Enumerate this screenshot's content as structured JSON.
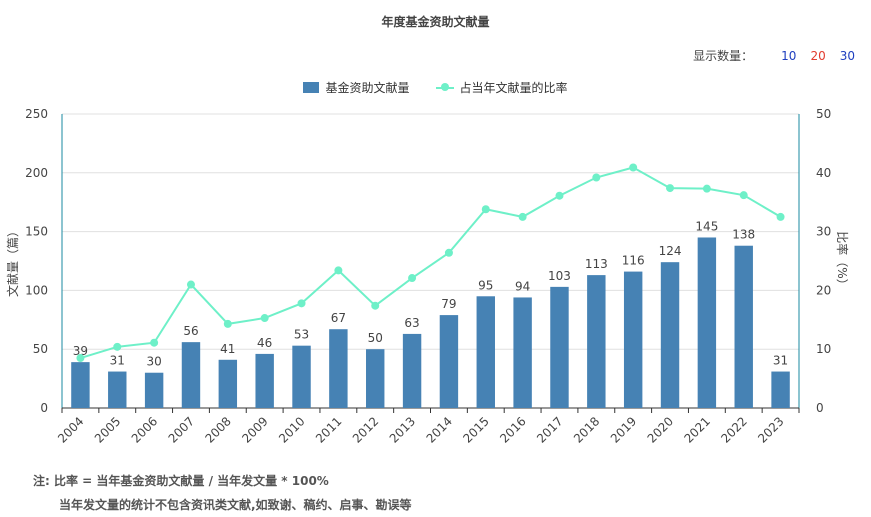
{
  "page_title": "年度基金资助文献量",
  "count_selector": {
    "label": "显示数量：",
    "options": [
      {
        "label": "10",
        "color": "#1f3fbf"
      },
      {
        "label": "20",
        "color": "#e23b2e"
      },
      {
        "label": "30",
        "color": "#1f3fbf"
      }
    ]
  },
  "legend": {
    "bar_label": "基金资助文献量",
    "line_label": "占当年文献量的比率"
  },
  "notes": {
    "line1": "注:  比率 = 当年基金资助文献量 / 当年发文量 * 100%",
    "line2": "当年发文量的统计不包含资讯类文献,如致谢、稿约、启事、勘误等"
  },
  "colors": {
    "bar": "#4682b4",
    "line": "#6ef0c8",
    "axis": "#1a8aa0",
    "grid": "#e0e0e0"
  },
  "chart_data": {
    "type": "bar",
    "title": "年度基金资助文献量",
    "categories": [
      "2004",
      "2005",
      "2006",
      "2007",
      "2008",
      "2009",
      "2010",
      "2011",
      "2012",
      "2013",
      "2014",
      "2015",
      "2016",
      "2017",
      "2018",
      "2019",
      "2020",
      "2021",
      "2022",
      "2023"
    ],
    "series": [
      {
        "name": "基金资助文献量",
        "type": "bar",
        "axis": "left",
        "values": [
          39,
          31,
          30,
          56,
          41,
          46,
          53,
          67,
          50,
          63,
          79,
          95,
          94,
          103,
          113,
          116,
          124,
          145,
          138,
          31
        ]
      },
      {
        "name": "占当年文献量的比率",
        "type": "line",
        "axis": "right",
        "values": [
          8.5,
          10.4,
          11.1,
          21.0,
          14.3,
          15.3,
          17.8,
          23.4,
          17.4,
          22.1,
          26.4,
          33.8,
          32.5,
          36.1,
          39.2,
          40.9,
          37.4,
          37.3,
          36.2,
          32.5
        ]
      }
    ],
    "ylabel_left": "文献量（篇）",
    "ylabel_right": "比率（%）",
    "ylim_left": [
      0,
      250
    ],
    "ylim_right": [
      0,
      50
    ],
    "yticks_left": [
      0,
      50,
      100,
      150,
      200,
      250
    ],
    "yticks_right": [
      0,
      10,
      20,
      30,
      40,
      50
    ],
    "grid": true,
    "legend_position": "top-center"
  }
}
